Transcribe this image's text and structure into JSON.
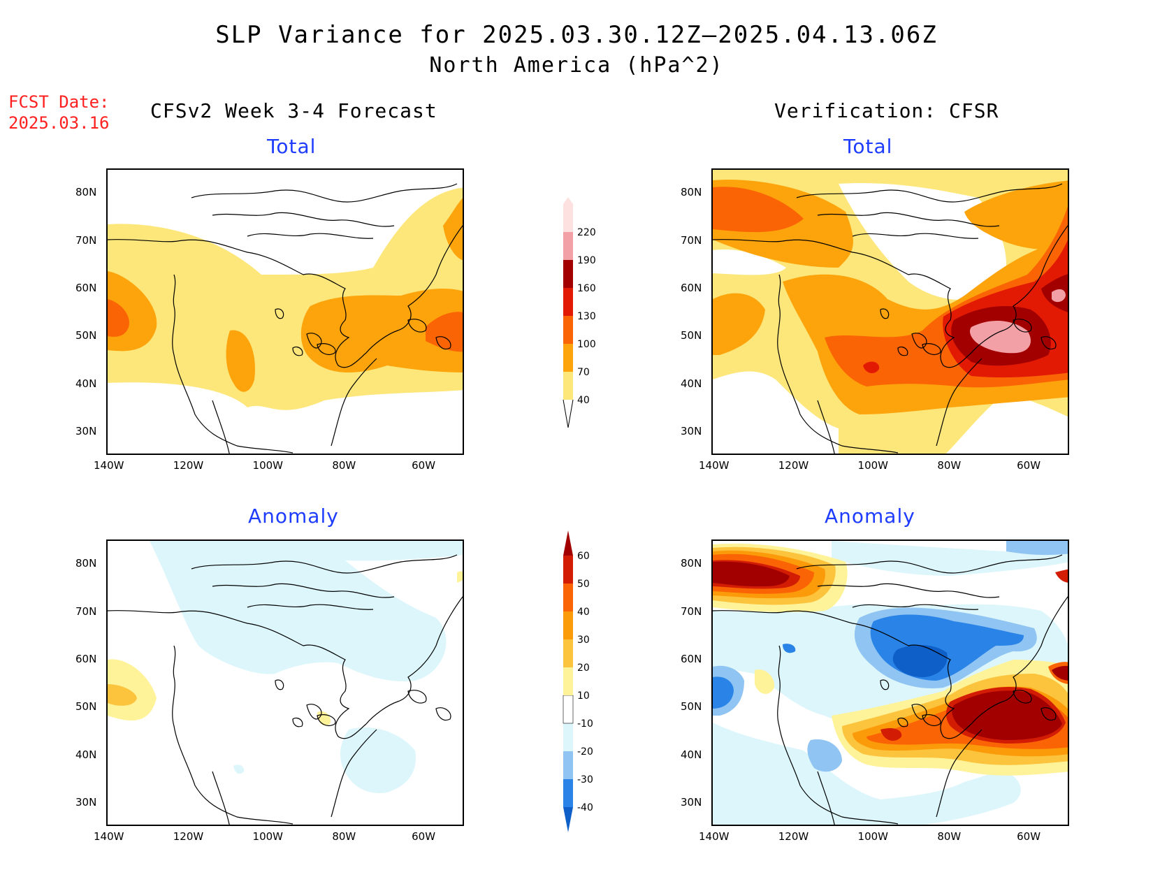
{
  "header": {
    "title_line1": "SLP Variance for 2025.03.30.12Z—2025.04.13.06Z",
    "title_line2": "North America (hPa^2)",
    "fcst_label": "FCST Date:",
    "fcst_date": "2025.03.16",
    "left_column_title": "CFSv2 Week 3-4 Forecast",
    "right_column_title": "Verification: CFSR"
  },
  "panels": {
    "forecast_total": {
      "title": "Total"
    },
    "verification_total": {
      "title": "Total"
    },
    "forecast_anomaly": {
      "title": "Anomaly"
    },
    "verification_anomaly": {
      "title": "Anomaly"
    }
  },
  "axes": {
    "lon_labels": [
      "140W",
      "120W",
      "100W",
      "80W",
      "60W"
    ],
    "lat_labels": [
      "80N",
      "70N",
      "60N",
      "50N",
      "40N",
      "30N"
    ],
    "lon_range": [
      -140,
      -50
    ],
    "lat_range": [
      25,
      85
    ]
  },
  "total_colorbar": {
    "levels": [
      "40",
      "70",
      "100",
      "130",
      "160",
      "190",
      "220"
    ],
    "colors": [
      "#fde77a",
      "#fda30c",
      "#fb6404",
      "#e21a04",
      "#a20000",
      "#f2a0a6",
      "#fde0e0"
    ]
  },
  "anomaly_colorbar": {
    "levels": [
      "-40",
      "-30",
      "-20",
      "-10",
      "10",
      "20",
      "30",
      "40",
      "50",
      "60"
    ],
    "colors": [
      "#0f5fc8",
      "#2a83e6",
      "#8fc4f3",
      "#dcf6fb",
      "#ffffff",
      "#fff39a",
      "#fcc33d",
      "#fc9b0a",
      "#fb6404",
      "#d21c04",
      "#a20000"
    ]
  },
  "colors": {
    "title_blue": "#1e3cff",
    "fcst_red": "#ff2020"
  }
}
